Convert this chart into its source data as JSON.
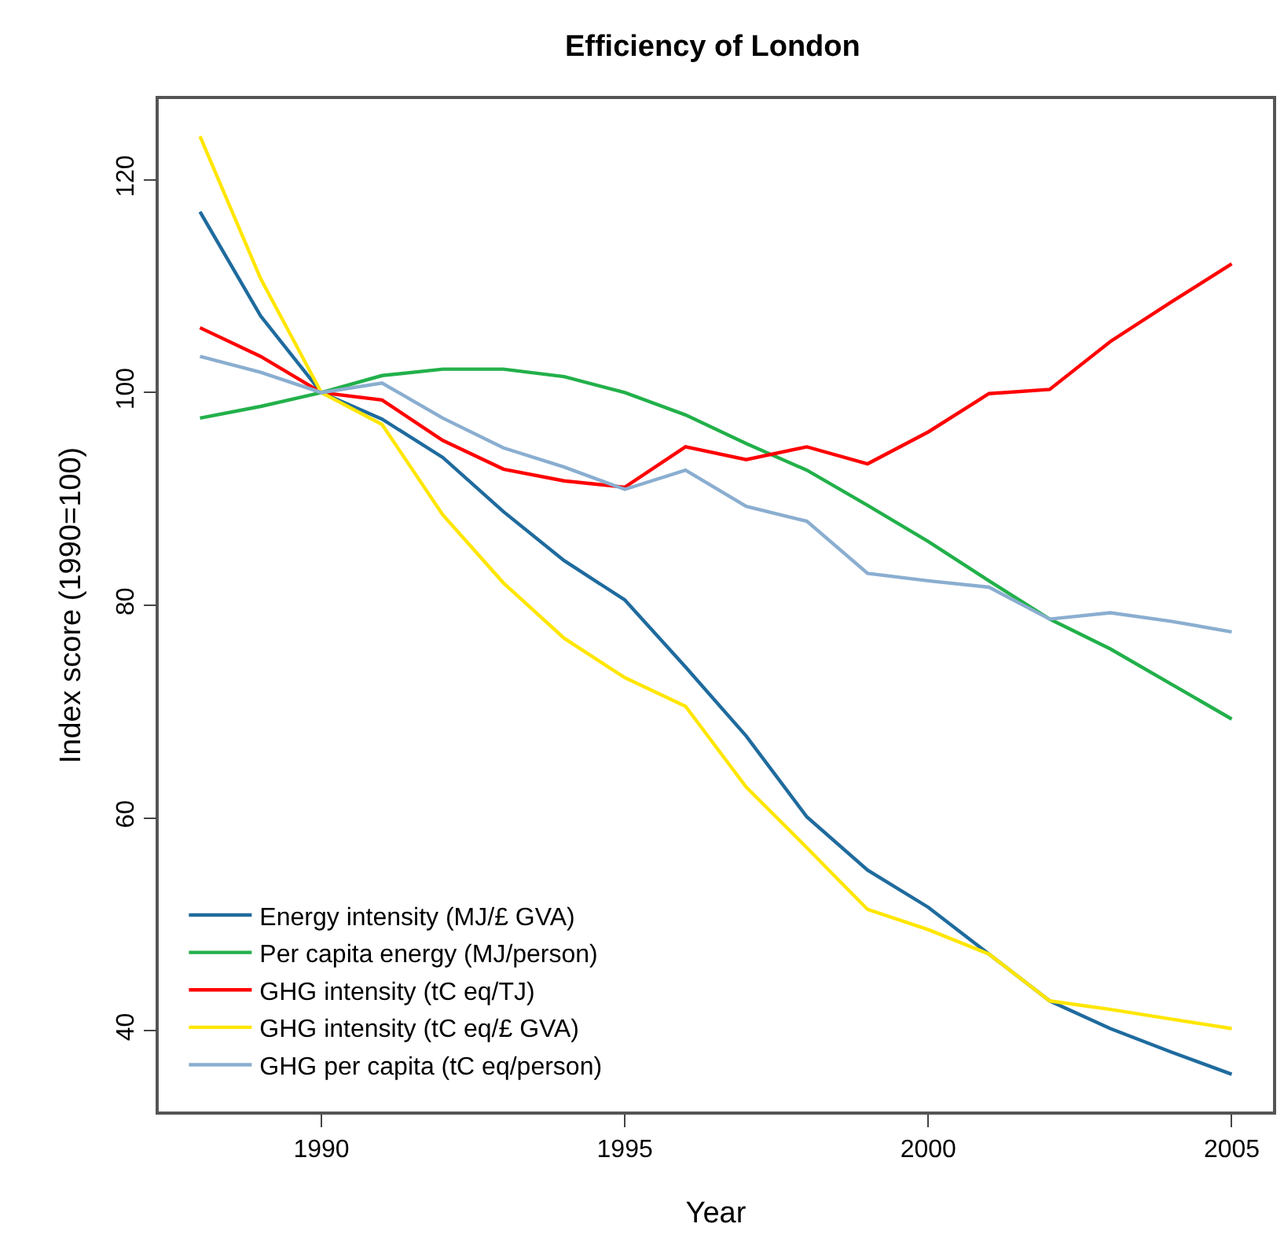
{
  "chart_data": {
    "type": "line",
    "title": "Efficiency of London",
    "xlabel": "Year",
    "ylabel": "Index score (1990=100)",
    "x": [
      1988,
      1989,
      1990,
      1991,
      1992,
      1993,
      1994,
      1995,
      1996,
      1997,
      1998,
      1999,
      2000,
      2001,
      2002,
      2003,
      2004,
      2005
    ],
    "series": [
      {
        "name": "Energy intensity (MJ/£ GVA)",
        "color": "#1f6b9e",
        "values": [
          117.0,
          107.2,
          100,
          97.5,
          93.9,
          88.8,
          84.2,
          80.5,
          74.2,
          67.7,
          60.1,
          55.1,
          51.6,
          47.2,
          42.8,
          40.2,
          38.0,
          35.9
        ]
      },
      {
        "name": "Per capita energy (MJ/person)",
        "color": "#22b04a",
        "values": [
          97.6,
          98.7,
          100,
          101.6,
          102.2,
          102.2,
          101.5,
          100,
          97.9,
          95.2,
          92.7,
          89.4,
          86.0,
          82.3,
          78.7,
          75.9,
          72.6,
          69.3
        ]
      },
      {
        "name": "GHG intensity (tC eq/TJ)",
        "color": "#ff0000",
        "values": [
          106.1,
          103.4,
          100,
          99.3,
          95.5,
          92.8,
          91.7,
          91.1,
          94.9,
          93.7,
          94.9,
          93.3,
          96.3,
          99.9,
          100.3,
          104.8,
          108.5,
          112.1
        ]
      },
      {
        "name": "GHG intensity (tC eq/£ GVA)",
        "color": "#ffe600",
        "values": [
          124.1,
          110.7,
          100,
          97.0,
          88.5,
          82.1,
          76.9,
          73.2,
          70.5,
          62.9,
          57.2,
          51.4,
          49.5,
          47.2,
          42.8,
          42.0,
          41.1,
          40.2
        ]
      },
      {
        "name": "GHG per capita (tC eq/person)",
        "color": "#8aaed0",
        "values": [
          103.4,
          101.9,
          100,
          100.9,
          97.6,
          94.8,
          93.0,
          90.9,
          92.7,
          89.3,
          87.9,
          83.0,
          82.3,
          81.7,
          78.7,
          79.3,
          78.5,
          77.5
        ]
      }
    ],
    "xlim": [
      1987.32,
      2005.68
    ],
    "xticks": [
      1990,
      1995,
      2000,
      2005
    ],
    "ylim": [
      32.4,
      127.6
    ],
    "yticks": [
      40,
      60,
      80,
      100,
      120
    ],
    "grid": false,
    "legend": "bottom left",
    "line_style": "solid",
    "marker": "none"
  }
}
